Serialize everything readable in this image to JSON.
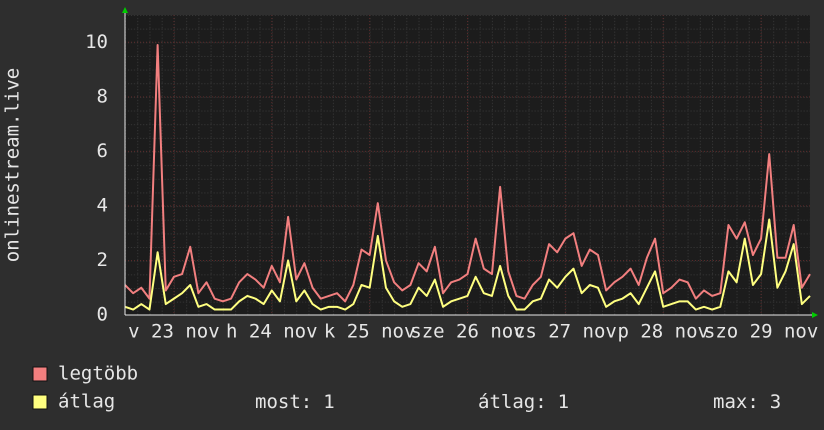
{
  "chart_data": {
    "type": "line",
    "y_label": "onlinestream.live",
    "x": [
      0,
      2,
      4,
      6,
      8,
      10,
      12,
      14,
      16,
      18,
      20,
      22,
      24,
      26,
      28,
      30,
      32,
      34,
      36,
      38,
      40,
      42,
      44,
      46,
      48,
      50,
      52,
      54,
      56,
      58,
      60,
      62,
      64,
      66,
      68,
      70,
      72,
      74,
      76,
      78,
      80,
      82,
      84,
      86,
      88,
      90,
      92,
      94,
      96,
      98,
      100,
      102,
      104,
      106,
      108,
      110,
      112,
      114,
      116,
      118,
      120,
      122,
      124,
      126,
      128,
      130,
      132,
      134,
      136,
      138,
      140,
      142,
      144,
      146,
      148,
      150,
      152,
      154,
      156,
      158,
      160,
      162,
      164,
      166,
      168
    ],
    "series": [
      {
        "name": "legtöbb",
        "color": "#f27f7f",
        "values": [
          1.1,
          0.8,
          1.0,
          0.6,
          9.9,
          0.9,
          1.4,
          1.5,
          2.5,
          0.8,
          1.2,
          0.6,
          0.5,
          0.6,
          1.2,
          1.5,
          1.3,
          1.0,
          1.8,
          1.2,
          3.6,
          1.3,
          1.9,
          1.0,
          0.6,
          0.7,
          0.8,
          0.5,
          1.1,
          2.4,
          2.2,
          4.1,
          2.0,
          1.2,
          0.9,
          1.1,
          1.9,
          1.6,
          2.5,
          0.8,
          1.2,
          1.3,
          1.5,
          2.8,
          1.7,
          1.5,
          4.7,
          1.6,
          0.7,
          0.6,
          1.1,
          1.4,
          2.6,
          2.3,
          2.8,
          3.0,
          1.8,
          2.4,
          2.2,
          0.9,
          1.2,
          1.4,
          1.7,
          1.1,
          2.1,
          2.8,
          0.8,
          1.0,
          1.3,
          1.2,
          0.6,
          0.9,
          0.7,
          0.8,
          3.3,
          2.8,
          3.4,
          2.2,
          2.8,
          5.9,
          2.1,
          2.1,
          3.3,
          1.0,
          1.5
        ]
      },
      {
        "name": "átlag",
        "color": "#ffff80",
        "values": [
          0.3,
          0.2,
          0.4,
          0.2,
          2.3,
          0.4,
          0.6,
          0.8,
          1.1,
          0.3,
          0.4,
          0.2,
          0.2,
          0.2,
          0.5,
          0.7,
          0.6,
          0.4,
          0.9,
          0.5,
          2.0,
          0.5,
          0.9,
          0.4,
          0.2,
          0.3,
          0.3,
          0.2,
          0.4,
          1.1,
          1.0,
          2.9,
          1.0,
          0.5,
          0.3,
          0.4,
          1.0,
          0.7,
          1.3,
          0.3,
          0.5,
          0.6,
          0.7,
          1.4,
          0.8,
          0.7,
          1.8,
          0.7,
          0.2,
          0.2,
          0.5,
          0.6,
          1.3,
          1.0,
          1.4,
          1.7,
          0.8,
          1.1,
          1.0,
          0.3,
          0.5,
          0.6,
          0.8,
          0.4,
          1.0,
          1.6,
          0.3,
          0.4,
          0.5,
          0.5,
          0.2,
          0.3,
          0.2,
          0.3,
          1.6,
          1.2,
          2.8,
          1.1,
          1.5,
          3.5,
          1.0,
          1.6,
          2.6,
          0.4,
          0.7
        ]
      }
    ],
    "xlim": [
      0,
      168
    ],
    "xticks": [
      {
        "value": 12,
        "label": "v 23 nov"
      },
      {
        "value": 36,
        "label": "h 24 nov"
      },
      {
        "value": 60,
        "label": "k 25 nov"
      },
      {
        "value": 84,
        "label": "sze 26 nov"
      },
      {
        "value": 108,
        "label": "cs 27 nov"
      },
      {
        "value": 132,
        "label": "p 28 nov"
      },
      {
        "value": 156,
        "label": "szo 29 nov"
      }
    ],
    "ylim": [
      0,
      11
    ],
    "yticks": [
      0,
      2,
      4,
      6,
      8,
      10
    ],
    "grid": true,
    "stats": [
      {
        "label": "most:",
        "value": 1
      },
      {
        "label": "átlag:",
        "value": 1
      },
      {
        "label": "max:",
        "value": 3
      }
    ]
  }
}
